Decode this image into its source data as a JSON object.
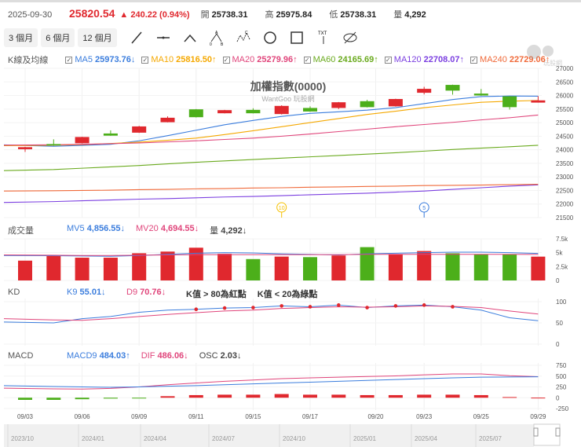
{
  "quote": {
    "date": "2025-09-30",
    "price": "25820.54",
    "change": "▲ 240.22 (0.94%)",
    "open_label": "開",
    "open": "25738.31",
    "high_label": "高",
    "high": "25975.84",
    "low_label": "低",
    "low": "25738.31",
    "vol_label": "量",
    "volume": "4,292"
  },
  "toolbar": {
    "ranges": [
      "3 個月",
      "6 個月",
      "12 個月"
    ],
    "tools": [
      "line-tool-icon",
      "horizontal-line-icon",
      "angle-icon",
      "abc-pattern-icon",
      "abcd-pattern-icon",
      "circle-icon",
      "rectangle-icon",
      "text-icon",
      "hide-icon"
    ]
  },
  "legend": {
    "title": "K線及均線",
    "items": [
      {
        "name": "MA5",
        "value": "25973.76",
        "arrow": "↓",
        "color": "#3b7ddd"
      },
      {
        "name": "MA10",
        "value": "25816.50",
        "arrow": "↑",
        "color": "#f5a800"
      },
      {
        "name": "MA20",
        "value": "25279.96",
        "arrow": "↑",
        "color": "#e0457b"
      },
      {
        "name": "MA60",
        "value": "24165.69",
        "arrow": "↑",
        "color": "#6aaa1e"
      },
      {
        "name": "MA120",
        "value": "22708.07",
        "arrow": "↑",
        "color": "#7b3fe0"
      },
      {
        "name": "MA240",
        "value": "22729.06",
        "arrow": "↑",
        "color": "#f06a3a"
      }
    ]
  },
  "watermark": {
    "title": "加權指數(0000)",
    "sub": "WantGoo 玩股網",
    "logo": "玩股網"
  },
  "volume_legend": {
    "title": "成交量",
    "mv5": "MV5",
    "mv5_val": "4,856.55↓",
    "mv20": "MV20",
    "mv20_val": "4,694.55↓",
    "vol": "量",
    "vol_val": "4,292↓"
  },
  "kd_legend": {
    "title": "KD",
    "k9": "K9",
    "k9_val": "55.01↓",
    "d9": "D9",
    "d9_val": "70.76↓",
    "note1": "K值 > 80為紅點",
    "note2": "K值 < 20為綠點"
  },
  "macd_legend": {
    "title": "MACD",
    "macd9": "MACD9",
    "macd9_val": "484.03↑",
    "dif": "DIF",
    "dif_val": "486.06↓",
    "osc": "OSC",
    "osc_val": "2.03↓"
  },
  "colors": {
    "up": "#e0282e",
    "down": "#4caf1a"
  },
  "markers": [
    {
      "label": "10",
      "index": 9,
      "color": "#f5c000"
    },
    {
      "label": "5",
      "index": 14,
      "color": "#3b7ddd"
    }
  ],
  "navigator": {
    "labels": [
      "2023/10",
      "2024/01",
      "2024/04",
      "2024/07",
      "2024/10",
      "2025/01",
      "2025/04",
      "2025/07"
    ]
  },
  "chart_data": [
    {
      "type": "candlestick",
      "title": "加權指數(0000)",
      "ylim": [
        21500,
        27000
      ],
      "yticks": [
        27000,
        26500,
        26000,
        25500,
        25000,
        24500,
        24000,
        23500,
        23000,
        22500,
        22000,
        21500
      ],
      "x_ticks": [
        {
          "label": "09/03",
          "index": 0
        },
        {
          "label": "09/06",
          "index": 2
        },
        {
          "label": "09/09",
          "index": 4
        },
        {
          "label": "09/11",
          "index": 6
        },
        {
          "label": "09/15",
          "index": 8
        },
        {
          "label": "09/17",
          "index": 10
        },
        {
          "label": "09/20",
          "index": 12.3
        },
        {
          "label": "09/23",
          "index": 14
        },
        {
          "label": "09/25",
          "index": 16
        },
        {
          "label": "09/29",
          "index": 18
        }
      ],
      "ohlc": [
        [
          24020,
          24110,
          23920,
          24095
        ],
        [
          24210,
          24385,
          24150,
          24165
        ],
        [
          24240,
          24480,
          24230,
          24470
        ],
        [
          24600,
          24715,
          24515,
          24520
        ],
        [
          24630,
          24880,
          24620,
          24860
        ],
        [
          25015,
          25230,
          25010,
          25180
        ],
        [
          25490,
          25500,
          25190,
          25200
        ],
        [
          25345,
          25470,
          25340,
          25460
        ],
        [
          25470,
          25530,
          25340,
          25345
        ],
        [
          25316,
          25640,
          25300,
          25616
        ],
        [
          25540,
          25600,
          25400,
          25410
        ],
        [
          25540,
          25760,
          25500,
          25750
        ],
        [
          25790,
          25840,
          25560,
          25570
        ],
        [
          25600,
          25880,
          25590,
          25870
        ],
        [
          26100,
          26320,
          26040,
          26245
        ],
        [
          26390,
          26400,
          26030,
          26180
        ],
        [
          26070,
          26240,
          25990,
          26000
        ],
        [
          25970,
          25975,
          25480,
          25570
        ],
        [
          25738,
          25975,
          25738,
          25820
        ]
      ],
      "series": [
        {
          "name": "MA5",
          "values": [
            24180,
            24130,
            24160,
            24200,
            24330,
            24520,
            24720,
            24920,
            25080,
            25230,
            25340,
            25400,
            25460,
            25550,
            25700,
            25850,
            25960,
            25980,
            25974
          ]
        },
        {
          "name": "MA10",
          "values": [
            24150,
            24170,
            24190,
            24230,
            24280,
            24350,
            24430,
            24560,
            24700,
            24850,
            25000,
            25150,
            25300,
            25420,
            25550,
            25650,
            25750,
            25790,
            25817
          ]
        },
        {
          "name": "MA20",
          "values": [
            24170,
            24185,
            24200,
            24225,
            24250,
            24290,
            24330,
            24380,
            24430,
            24500,
            24580,
            24670,
            24760,
            24850,
            24930,
            25010,
            25100,
            25180,
            25280
          ]
        },
        {
          "name": "MA60",
          "values": [
            23230,
            23270,
            23320,
            23370,
            23420,
            23480,
            23540,
            23590,
            23640,
            23690,
            23740,
            23790,
            23840,
            23890,
            23950,
            24010,
            24060,
            24110,
            24166
          ]
        },
        {
          "name": "MA120",
          "values": [
            22060,
            22090,
            22120,
            22150,
            22180,
            22200,
            22230,
            22260,
            22280,
            22310,
            22340,
            22370,
            22400,
            22440,
            22480,
            22540,
            22600,
            22660,
            22708
          ]
        },
        {
          "name": "MA240",
          "values": [
            22480,
            22490,
            22500,
            22510,
            22530,
            22540,
            22560,
            22570,
            22590,
            22600,
            22620,
            22630,
            22650,
            22660,
            22680,
            22690,
            22700,
            22715,
            22729
          ]
        }
      ]
    },
    {
      "type": "bar",
      "title": "成交量",
      "ylim": [
        0,
        7500
      ],
      "yticks": [
        "7.5k",
        "5k",
        "2.5k",
        "0"
      ],
      "values": [
        3570,
        4400,
        4100,
        4100,
        4900,
        5200,
        5900,
        4800,
        3850,
        4300,
        4200,
        4500,
        6000,
        4700,
        5300,
        4900,
        4700,
        4700,
        4292
      ],
      "up": [
        true,
        true,
        true,
        true,
        true,
        true,
        true,
        true,
        false,
        true,
        false,
        true,
        false,
        true,
        true,
        false,
        false,
        false,
        true
      ],
      "series": [
        {
          "name": "MV5",
          "values": [
            4500,
            4450,
            4400,
            4350,
            4500,
            4700,
            4900,
            5000,
            4950,
            4800,
            4700,
            4600,
            4800,
            4900,
            5000,
            5100,
            5100,
            5000,
            4857
          ]
        },
        {
          "name": "MV20",
          "values": [
            4600,
            4550,
            4500,
            4500,
            4550,
            4600,
            4650,
            4650,
            4650,
            4650,
            4650,
            4650,
            4700,
            4700,
            4700,
            4700,
            4700,
            4700,
            4695
          ]
        }
      ]
    },
    {
      "type": "line",
      "title": "KD",
      "ylim": [
        0,
        100
      ],
      "yticks": [
        100,
        50,
        0
      ],
      "series": [
        {
          "name": "K9",
          "values": [
            52,
            50,
            60,
            65,
            75,
            80,
            82,
            85,
            86,
            90,
            88,
            92,
            86,
            90,
            92,
            88,
            80,
            62,
            55.01
          ]
        },
        {
          "name": "D9",
          "values": [
            60,
            57,
            56,
            60,
            65,
            70,
            74,
            78,
            80,
            84,
            86,
            88,
            87,
            88,
            90,
            89,
            86,
            78,
            70.76
          ]
        }
      ]
    },
    {
      "type": "line",
      "title": "MACD",
      "ylim": [
        -250,
        750
      ],
      "yticks": [
        750,
        500,
        250,
        0,
        -250
      ],
      "osc": [
        -50,
        -50,
        -35,
        -20,
        -5,
        35,
        60,
        70,
        70,
        85,
        70,
        70,
        60,
        60,
        70,
        70,
        60,
        15,
        2.03
      ],
      "series": [
        {
          "name": "DIF",
          "values": [
            220,
            205,
            200,
            215,
            250,
            300,
            340,
            380,
            410,
            440,
            460,
            475,
            490,
            505,
            530,
            550,
            550,
            510,
            486.06
          ]
        },
        {
          "name": "MACD9",
          "values": [
            280,
            260,
            250,
            240,
            250,
            265,
            280,
            300,
            320,
            340,
            360,
            380,
            400,
            420,
            440,
            460,
            475,
            480,
            484.03
          ]
        }
      ]
    }
  ]
}
